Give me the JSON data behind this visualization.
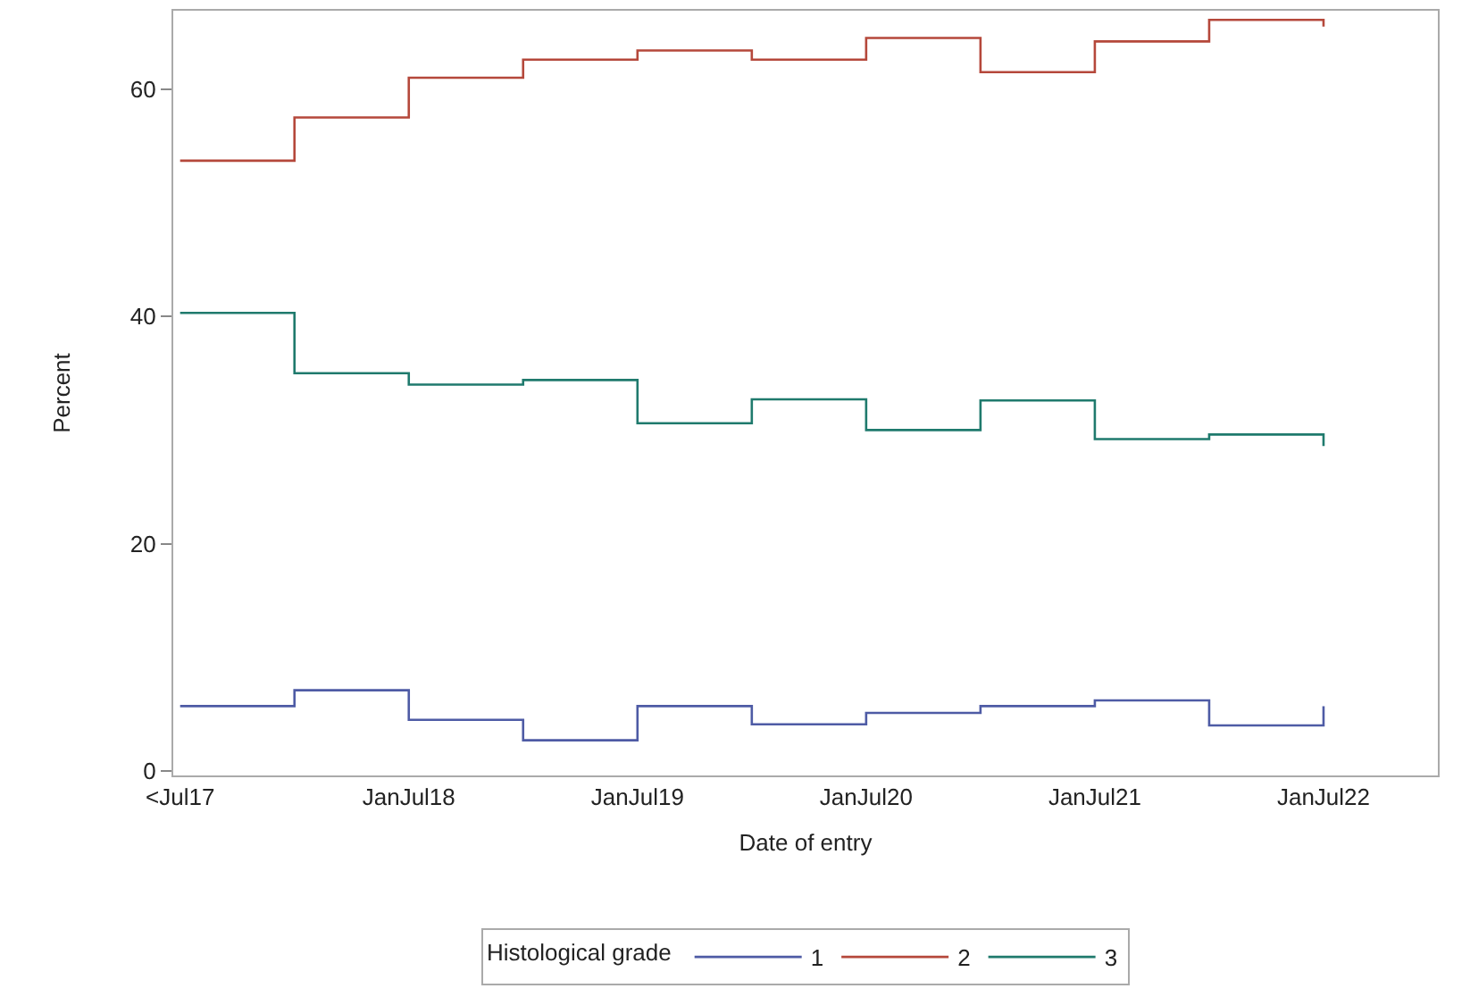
{
  "chart_data": {
    "type": "step",
    "xlabel": "Date of entry",
    "ylabel": "Percent",
    "legend_title": "Histological grade",
    "categories": [
      "<Jul17",
      null,
      "JanJul18",
      null,
      "JanJul19",
      null,
      "JanJul20",
      null,
      "JanJul21",
      null,
      "JanJul22"
    ],
    "series": [
      {
        "name": "1",
        "color": "#4e5ba5",
        "values": [
          5.7,
          7.1,
          4.5,
          2.7,
          5.7,
          4.1,
          5.1,
          5.7,
          6.2,
          4.0,
          5.7
        ]
      },
      {
        "name": "2",
        "color": "#b5483b",
        "values": [
          53.7,
          57.5,
          61.0,
          62.6,
          63.4,
          62.6,
          64.5,
          61.5,
          64.2,
          66.1,
          65.5
        ]
      },
      {
        "name": "3",
        "color": "#1f7a6d",
        "values": [
          40.3,
          35.0,
          34.0,
          34.4,
          30.6,
          32.7,
          30.0,
          32.6,
          29.2,
          29.6,
          28.6
        ]
      }
    ],
    "ylim": [
      -0.4,
      66.9
    ],
    "yticks": [
      0,
      20,
      40,
      60
    ],
    "grid": false,
    "legend": "bottom"
  }
}
